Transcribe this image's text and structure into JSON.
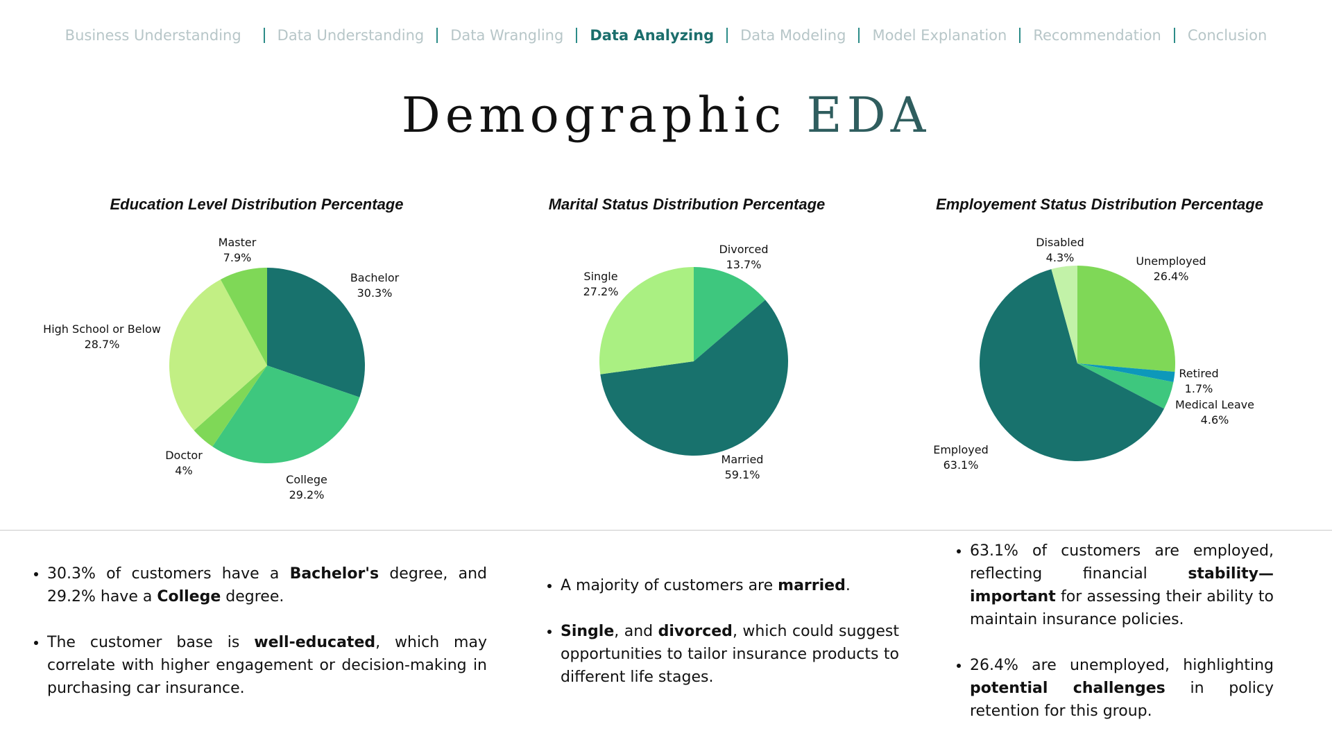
{
  "nav": {
    "items": [
      {
        "label": "Business Understanding",
        "active": false
      },
      {
        "label": "Data Understanding",
        "active": false
      },
      {
        "label": "Data Wrangling",
        "active": false
      },
      {
        "label": "Data Analyzing",
        "active": true
      },
      {
        "label": "Data Modeling",
        "active": false
      },
      {
        "label": "Model Explanation",
        "active": false
      },
      {
        "label": "Recommendation",
        "active": false
      },
      {
        "label": "Conclusion",
        "active": false
      }
    ]
  },
  "title": {
    "main": "Demographic",
    "accent": "EDA"
  },
  "chart_data": [
    {
      "type": "pie",
      "title": "Education Level Distribution Percentage",
      "categories": [
        "Bachelor",
        "College",
        "Doctor",
        "High School or Below",
        "Master"
      ],
      "values": [
        30.3,
        29.2,
        4,
        28.7,
        7.9
      ],
      "value_labels": [
        "30.3%",
        "29.2%",
        "4%",
        "28.7%",
        "7.9%"
      ],
      "colors": [
        "#18726d",
        "#3ec77e",
        "#7fd857",
        "#c2ef84",
        "#7fd857"
      ]
    },
    {
      "type": "pie",
      "title": "Marital Status Distribution Percentage",
      "categories": [
        "Divorced",
        "Married",
        "Single"
      ],
      "values": [
        13.7,
        59.1,
        27.2
      ],
      "value_labels": [
        "13.7%",
        "59.1%",
        "27.2%"
      ],
      "colors": [
        "#3ec77e",
        "#18726d",
        "#aaf082"
      ]
    },
    {
      "type": "pie",
      "title": "Employement Status Distribution Percentage",
      "categories": [
        "Unemployed",
        "Retired",
        "Medical Leave",
        "Employed",
        "Disabled"
      ],
      "values": [
        26.4,
        1.7,
        4.6,
        63.1,
        4.3
      ],
      "value_labels": [
        "26.4%",
        "1.7%",
        "4.6%",
        "63.1%",
        "4.3%"
      ],
      "colors": [
        "#7fd857",
        "#0d98ba",
        "#3ec77e",
        "#18726d",
        "#c2f2a8"
      ]
    }
  ],
  "bullets": {
    "education": [
      [
        {
          "t": "30.3% of customers have a "
        },
        {
          "t": "Bachelor's",
          "b": true
        },
        {
          "t": " degree, and 29.2% have a "
        },
        {
          "t": "College",
          "b": true
        },
        {
          "t": " degree."
        }
      ],
      [
        {
          "t": "The customer base is "
        },
        {
          "t": "well-educated",
          "b": true
        },
        {
          "t": ", which may correlate with higher engagement or decision-making in purchasing car insurance."
        }
      ]
    ],
    "marital": [
      [
        {
          "t": "A majority of customers are "
        },
        {
          "t": "married",
          "b": true
        },
        {
          "t": "."
        }
      ],
      [
        {
          "t": "Single",
          "b": true
        },
        {
          "t": ", and "
        },
        {
          "t": "divorced",
          "b": true
        },
        {
          "t": ", which could suggest opportunities to tailor insurance products to different life stages."
        }
      ]
    ],
    "employment": [
      [
        {
          "t": "63.1% of customers are employed, reflecting financial "
        },
        {
          "t": "stability—important",
          "b": true
        },
        {
          "t": " for assessing their ability to maintain insurance policies."
        }
      ],
      [
        {
          "t": "26.4% are unemployed, highlighting "
        },
        {
          "t": "potential challenges",
          "b": true
        },
        {
          "t": " in policy retention for this group."
        }
      ]
    ]
  }
}
